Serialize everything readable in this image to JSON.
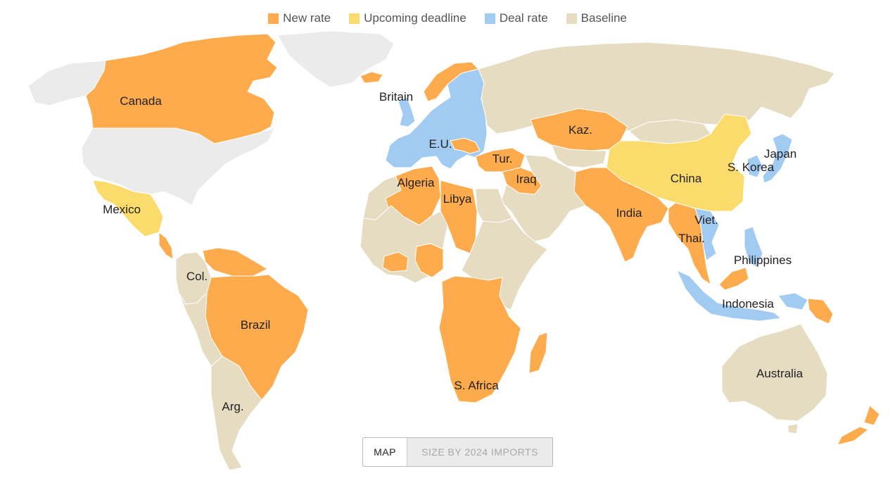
{
  "colors": {
    "new_rate": "#fdab4c",
    "upcoming_deadline": "#fbdb6b",
    "deal_rate": "#a2cbf2",
    "baseline": "#e5dcc2",
    "no_data": "#ebebeb",
    "border": "#ffffff"
  },
  "legend": [
    {
      "label": "New rate",
      "color": "#fdab4c"
    },
    {
      "label": "Upcoming deadline",
      "color": "#fbdb6b"
    },
    {
      "label": "Deal rate",
      "color": "#a2cbf2"
    },
    {
      "label": "Baseline",
      "color": "#e5dcc2"
    }
  ],
  "labels": {
    "canada": "Canada",
    "mexico": "Mexico",
    "col": "Col.",
    "brazil": "Brazil",
    "arg": "Arg.",
    "britain": "Britain",
    "eu": "E.U.",
    "algeria": "Algeria",
    "libya": "Libya",
    "tur": "Tur.",
    "iraq": "Iraq",
    "kaz": "Kaz.",
    "india": "India",
    "china": "China",
    "japan": "Japan",
    "skorea": "S. Korea",
    "viet": "Viet.",
    "thai": "Thai.",
    "philippines": "Philippines",
    "indonesia": "Indonesia",
    "safrica": "S. Africa",
    "australia": "Australia"
  },
  "regions": [
    {
      "id": "greenland",
      "status": "no_data"
    },
    {
      "id": "alaska",
      "status": "no_data"
    },
    {
      "id": "usa",
      "status": "no_data"
    },
    {
      "id": "canada",
      "status": "new_rate"
    },
    {
      "id": "mexico",
      "status": "upcoming_deadline"
    },
    {
      "id": "central-america",
      "status": "new_rate"
    },
    {
      "id": "colombia",
      "status": "baseline"
    },
    {
      "id": "venezuela",
      "status": "new_rate"
    },
    {
      "id": "brazil",
      "status": "new_rate"
    },
    {
      "id": "south-america-west",
      "status": "baseline"
    },
    {
      "id": "argentina",
      "status": "baseline"
    },
    {
      "id": "britain",
      "status": "deal_rate"
    },
    {
      "id": "iceland",
      "status": "new_rate"
    },
    {
      "id": "norway",
      "status": "new_rate"
    },
    {
      "id": "eu",
      "status": "deal_rate"
    },
    {
      "id": "balkans",
      "status": "new_rate"
    },
    {
      "id": "russia",
      "status": "baseline"
    },
    {
      "id": "kazakhstan",
      "status": "new_rate"
    },
    {
      "id": "turkey",
      "status": "new_rate"
    },
    {
      "id": "iraq",
      "status": "new_rate"
    },
    {
      "id": "middle-east",
      "status": "baseline"
    },
    {
      "id": "north-africa-west",
      "status": "baseline"
    },
    {
      "id": "algeria",
      "status": "new_rate"
    },
    {
      "id": "libya",
      "status": "new_rate"
    },
    {
      "id": "egypt",
      "status": "baseline"
    },
    {
      "id": "west-africa",
      "status": "baseline"
    },
    {
      "id": "west-africa-orange",
      "status": "new_rate"
    },
    {
      "id": "east-africa",
      "status": "baseline"
    },
    {
      "id": "southern-africa",
      "status": "new_rate"
    },
    {
      "id": "madagascar",
      "status": "new_rate"
    },
    {
      "id": "south-asia",
      "status": "new_rate"
    },
    {
      "id": "central-asia",
      "status": "baseline"
    },
    {
      "id": "china",
      "status": "upcoming_deadline"
    },
    {
      "id": "mongolia",
      "status": "baseline"
    },
    {
      "id": "korea-japan",
      "status": "deal_rate"
    },
    {
      "id": "southeast-asia",
      "status": "new_rate"
    },
    {
      "id": "vietnam",
      "status": "deal_rate"
    },
    {
      "id": "philippines",
      "status": "deal_rate"
    },
    {
      "id": "indonesia",
      "status": "deal_rate"
    },
    {
      "id": "malaysia",
      "status": "new_rate"
    },
    {
      "id": "png",
      "status": "new_rate"
    },
    {
      "id": "australia",
      "status": "baseline"
    },
    {
      "id": "new-zealand",
      "status": "new_rate"
    }
  ],
  "toggle": {
    "map_label": "MAP",
    "size_label": "SIZE BY 2024 IMPORTS",
    "selected": "MAP"
  }
}
